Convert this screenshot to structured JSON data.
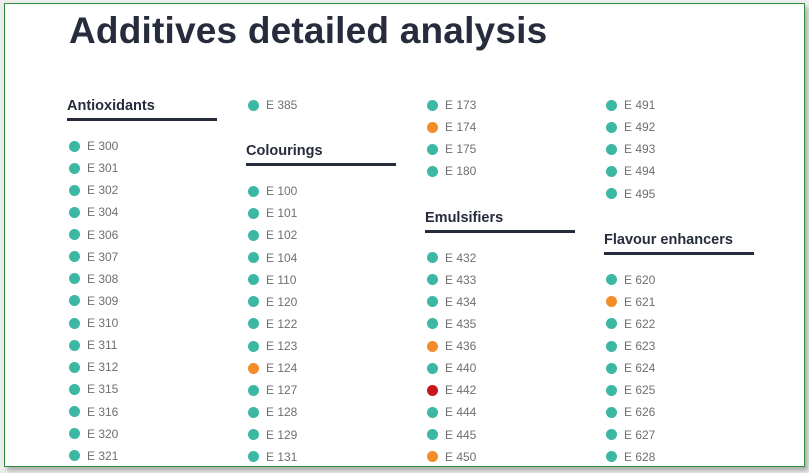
{
  "title": "Additives detailed analysis",
  "legend_colors": {
    "ok": "#3cb7a4",
    "warn": "#f28c28",
    "bad": "#c8161d"
  },
  "columns": [
    {
      "blocks": [
        {
          "heading": "Antioxidants"
        },
        {
          "items": [
            {
              "code": "E 300",
              "status": "ok"
            },
            {
              "code": "E 301",
              "status": "ok"
            },
            {
              "code": "E 302",
              "status": "ok"
            },
            {
              "code": "E 304",
              "status": "ok"
            },
            {
              "code": "E 306",
              "status": "ok"
            },
            {
              "code": "E 307",
              "status": "ok"
            },
            {
              "code": "E 308",
              "status": "ok"
            },
            {
              "code": "E 309",
              "status": "ok"
            },
            {
              "code": "E 310",
              "status": "ok"
            },
            {
              "code": "E 311",
              "status": "ok"
            },
            {
              "code": "E 312",
              "status": "ok"
            },
            {
              "code": "E 315",
              "status": "ok"
            },
            {
              "code": "E 316",
              "status": "ok"
            },
            {
              "code": "E 320",
              "status": "ok"
            },
            {
              "code": "E 321",
              "status": "ok"
            }
          ]
        }
      ]
    },
    {
      "blocks": [
        {
          "items": [
            {
              "code": "E 385",
              "status": "ok"
            }
          ]
        },
        {
          "heading": "Colourings"
        },
        {
          "items": [
            {
              "code": "E 100",
              "status": "ok"
            },
            {
              "code": "E 101",
              "status": "ok"
            },
            {
              "code": "E 102",
              "status": "ok"
            },
            {
              "code": "E 104",
              "status": "ok"
            },
            {
              "code": "E 110",
              "status": "ok"
            },
            {
              "code": "E 120",
              "status": "ok"
            },
            {
              "code": "E 122",
              "status": "ok"
            },
            {
              "code": "E 123",
              "status": "ok"
            },
            {
              "code": "E 124",
              "status": "warn"
            },
            {
              "code": "E 127",
              "status": "ok"
            },
            {
              "code": "E 128",
              "status": "ok"
            },
            {
              "code": "E 129",
              "status": "ok"
            },
            {
              "code": "E 131",
              "status": "ok"
            }
          ]
        }
      ]
    },
    {
      "blocks": [
        {
          "items": [
            {
              "code": "E 173",
              "status": "ok"
            },
            {
              "code": "E 174",
              "status": "warn"
            },
            {
              "code": "E 175",
              "status": "ok"
            },
            {
              "code": "E 180",
              "status": "ok"
            }
          ]
        },
        {
          "heading": "Emulsifiers"
        },
        {
          "items": [
            {
              "code": "E 432",
              "status": "ok"
            },
            {
              "code": "E 433",
              "status": "ok"
            },
            {
              "code": "E 434",
              "status": "ok"
            },
            {
              "code": "E 435",
              "status": "ok"
            },
            {
              "code": "E 436",
              "status": "warn"
            },
            {
              "code": "E 440",
              "status": "ok"
            },
            {
              "code": "E 442",
              "status": "bad"
            },
            {
              "code": "E 444",
              "status": "ok"
            },
            {
              "code": "E 445",
              "status": "ok"
            },
            {
              "code": "E 450",
              "status": "warn"
            }
          ]
        }
      ]
    },
    {
      "blocks": [
        {
          "items": [
            {
              "code": "E 491",
              "status": "ok"
            },
            {
              "code": "E 492",
              "status": "ok"
            },
            {
              "code": "E 493",
              "status": "ok"
            },
            {
              "code": "E 494",
              "status": "ok"
            },
            {
              "code": "E 495",
              "status": "ok"
            }
          ]
        },
        {
          "heading": "Flavour enhancers"
        },
        {
          "items": [
            {
              "code": "E 620",
              "status": "ok"
            },
            {
              "code": "E 621",
              "status": "warn"
            },
            {
              "code": "E 622",
              "status": "ok"
            },
            {
              "code": "E 623",
              "status": "ok"
            },
            {
              "code": "E 624",
              "status": "ok"
            },
            {
              "code": "E 625",
              "status": "ok"
            },
            {
              "code": "E 626",
              "status": "ok"
            },
            {
              "code": "E 627",
              "status": "ok"
            },
            {
              "code": "E 628",
              "status": "ok"
            }
          ]
        }
      ]
    }
  ]
}
